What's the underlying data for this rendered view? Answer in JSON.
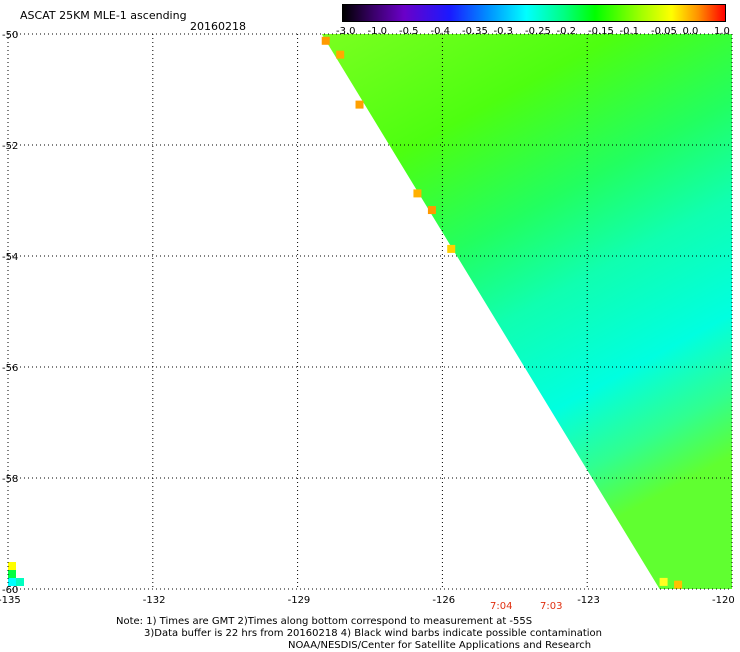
{
  "header": {
    "title": "ASCAT 25KM MLE-1 ascending",
    "date": "20160218"
  },
  "colorbar": {
    "labels": [
      "-3.0",
      "-1.0",
      "-0.5",
      "-0.4",
      "-0.35",
      "-0.3",
      "-0.25",
      "-0.2",
      "-0.15",
      "-0.1",
      "-0.05",
      "0.0",
      "1.0"
    ]
  },
  "time_labels": [
    "7:04",
    "7:03"
  ],
  "notes": [
    "Note: 1) Times are GMT 2)Times along bottom correspond to measurement at -55S",
    "3)Data buffer is 22 hrs from 20160218 4) Black wind barbs indicate possible contamination",
    "NOAA/NESDIS/Center for Satellite Applications and Research"
  ],
  "colors": {
    "time_label": "#e03010",
    "grid": "#000000"
  },
  "chart_data": {
    "type": "heatmap",
    "title": "ASCAT 25KM MLE-1 ascending",
    "subtitle": "20160218",
    "x_ticks": [
      "-135",
      "-132",
      "-129",
      "-126",
      "-123",
      "-120"
    ],
    "y_ticks": [
      "-50",
      "-52",
      "-54",
      "-56",
      "-58",
      "-60"
    ],
    "xlim": [
      -135,
      -120
    ],
    "ylim": [
      -60,
      -50
    ],
    "grid": true,
    "colorbar_position": "top-right",
    "swath": {
      "description_values": "MLE values mostly between -0.25 and -0.1",
      "corners": [
        [
          -128.5,
          -50
        ],
        [
          -120,
          -50
        ],
        [
          -120,
          -60
        ],
        [
          -121.5,
          -60
        ]
      ],
      "dominant_value_north": -0.15,
      "dominant_value_south": -0.27,
      "edge_value_high": -0.05
    }
  }
}
